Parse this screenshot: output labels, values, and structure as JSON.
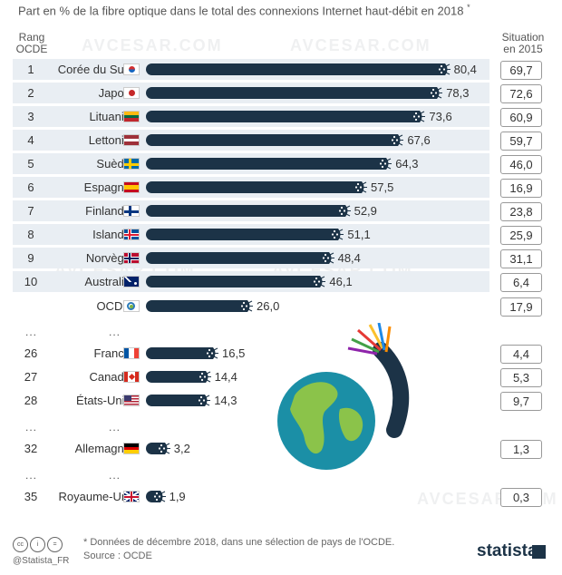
{
  "subtitle": "Part en % de la fibre optique dans le total des connexions Internet haut-débit en 2018",
  "subtitle_mark": "*",
  "header": {
    "rank_line1": "Rang",
    "rank_line2": "OCDE",
    "s2015_line1": "Situation",
    "s2015_line2": "en 2015"
  },
  "ellipsis": "...",
  "watermark": "AVCESAR.COM",
  "colors": {
    "bar": "#1c3347",
    "row_shade": "#e9eef3"
  },
  "chart_data": {
    "type": "bar",
    "orientation": "horizontal",
    "title": "Part en % de la fibre optique dans le total des connexions Internet haut-débit en 2018",
    "xlim": [
      0,
      100
    ],
    "rows": [
      {
        "rank": "1",
        "country": "Corée du Sud",
        "value": 80.4,
        "label": "80,4",
        "v2015": "69,7",
        "flag": "kr"
      },
      {
        "rank": "2",
        "country": "Japon",
        "value": 78.3,
        "label": "78,3",
        "v2015": "72,6",
        "flag": "jp"
      },
      {
        "rank": "3",
        "country": "Lituanie",
        "value": 73.6,
        "label": "73,6",
        "v2015": "60,9",
        "flag": "lt"
      },
      {
        "rank": "4",
        "country": "Lettonie",
        "value": 67.6,
        "label": "67,6",
        "v2015": "59,7",
        "flag": "lv"
      },
      {
        "rank": "5",
        "country": "Suède",
        "value": 64.3,
        "label": "64,3",
        "v2015": "46,0",
        "flag": "se"
      },
      {
        "rank": "6",
        "country": "Espagne",
        "value": 57.5,
        "label": "57,5",
        "v2015": "16,9",
        "flag": "es"
      },
      {
        "rank": "7",
        "country": "Finlande",
        "value": 52.9,
        "label": "52,9",
        "v2015": "23,8",
        "flag": "fi"
      },
      {
        "rank": "8",
        "country": "Islande",
        "value": 51.1,
        "label": "51,1",
        "v2015": "25,9",
        "flag": "is"
      },
      {
        "rank": "9",
        "country": "Norvège",
        "value": 48.4,
        "label": "48,4",
        "v2015": "31,1",
        "flag": "no"
      },
      {
        "rank": "10",
        "country": "Australie",
        "value": 46.1,
        "label": "46,1",
        "v2015": "6,4",
        "flag": "au"
      },
      {
        "rank": "",
        "country": "OCDE",
        "value": 26.0,
        "label": "26,0",
        "v2015": "17,9",
        "flag": "oecd"
      },
      {
        "rank": "26",
        "country": "France",
        "value": 16.5,
        "label": "16,5",
        "v2015": "4,4",
        "flag": "fr"
      },
      {
        "rank": "27",
        "country": "Canada",
        "value": 14.4,
        "label": "14,4",
        "v2015": "5,3",
        "flag": "ca"
      },
      {
        "rank": "28",
        "country": "États-Unis",
        "value": 14.3,
        "label": "14,3",
        "v2015": "9,7",
        "flag": "us"
      },
      {
        "rank": "32",
        "country": "Allemagne",
        "value": 3.2,
        "label": "3,2",
        "v2015": "1,3",
        "flag": "de"
      },
      {
        "rank": "35",
        "country": "Royaume-Uni",
        "value": 1.9,
        "label": "1,9",
        "v2015": "0,3",
        "flag": "gb"
      }
    ]
  },
  "footer": {
    "note": "* Données de décembre 2018, dans une sélection de pays de l'OCDE.",
    "source": "Source : OCDE",
    "handle": "@Statista_FR",
    "brand": "statista",
    "cc_labels": [
      "cc",
      "i",
      "="
    ]
  }
}
